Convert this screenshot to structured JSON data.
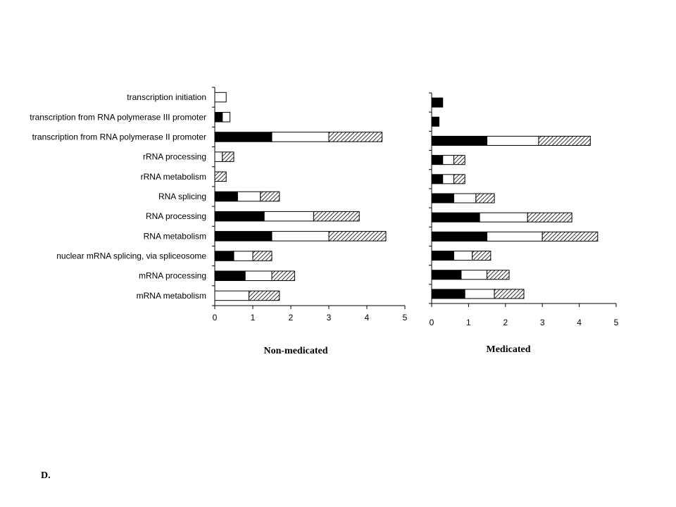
{
  "panel_letter": "D.",
  "colors": {
    "solid": "#000000",
    "open": "#ffffff",
    "outline": "#000000"
  },
  "chart_data": [
    {
      "type": "bar",
      "orientation": "horizontal",
      "stacked": true,
      "title": "Non-medicated",
      "categories": [
        "transcription initiation",
        "transcription from RNA polymerase III  promoter",
        "transcription from RNA polymerase II promoter",
        "rRNA processing",
        "rRNA metabolism",
        "RNA splicing",
        "RNA processing",
        "RNA metabolism",
        "nuclear mRNA splicing, via spliceosome",
        "mRNA processing",
        "mRNA metabolism"
      ],
      "series": [
        {
          "fill": "solid",
          "values": [
            0,
            0.2,
            1.5,
            0,
            0,
            0.6,
            1.3,
            1.5,
            0.5,
            0.8,
            0
          ]
        },
        {
          "fill": "open",
          "values": [
            0.3,
            0.2,
            1.5,
            0.2,
            0,
            0.6,
            1.3,
            1.5,
            0.5,
            0.7,
            0.9
          ]
        },
        {
          "fill": "hatched",
          "values": [
            0,
            0,
            1.4,
            0.3,
            0.3,
            0.5,
            1.2,
            1.5,
            0.5,
            0.6,
            0.8
          ]
        }
      ],
      "xlim": [
        0,
        5
      ],
      "xticks": [
        "0",
        "1",
        "2",
        "3",
        "4",
        "5"
      ],
      "grid": false
    },
    {
      "type": "bar",
      "orientation": "horizontal",
      "stacked": true,
      "title": "Medicated",
      "categories": [
        "transcription initiation",
        "transcription from RNA polymerase III  promoter",
        "transcription from RNA polymerase II promoter",
        "rRNA processing",
        "rRNA metabolism",
        "RNA splicing",
        "RNA processing",
        "RNA metabolism",
        "nuclear mRNA splicing, via spliceosome",
        "mRNA processing",
        "mRNA metabolism"
      ],
      "series": [
        {
          "fill": "solid",
          "values": [
            0.3,
            0.2,
            1.5,
            0.3,
            0.3,
            0.6,
            1.3,
            1.5,
            0.6,
            0.8,
            0.9
          ]
        },
        {
          "fill": "open",
          "values": [
            0,
            0,
            1.4,
            0.3,
            0.3,
            0.6,
            1.3,
            1.5,
            0.5,
            0.7,
            0.8
          ]
        },
        {
          "fill": "hatched",
          "values": [
            0,
            0,
            1.4,
            0.3,
            0.3,
            0.5,
            1.2,
            1.5,
            0.5,
            0.6,
            0.8
          ]
        }
      ],
      "xlim": [
        0,
        5
      ],
      "xticks": [
        "0",
        "1",
        "2",
        "3",
        "4",
        "5"
      ],
      "grid": false
    }
  ]
}
